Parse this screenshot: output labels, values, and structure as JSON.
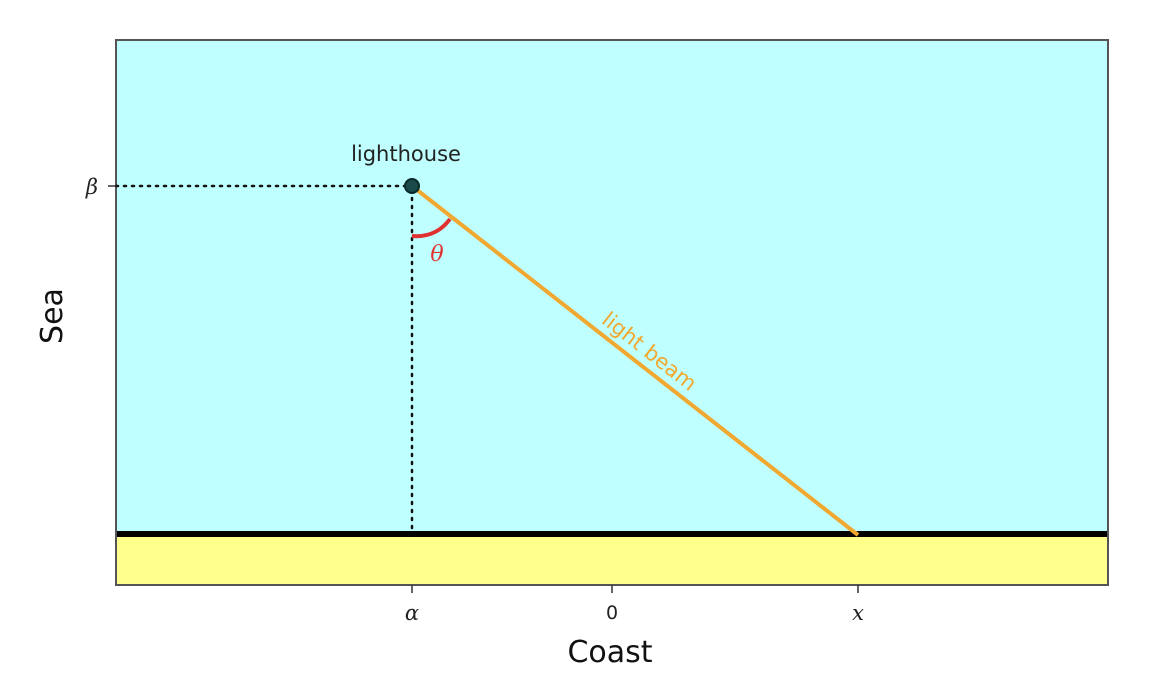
{
  "axes": {
    "xlabel": "Coast",
    "ylabel": "Sea",
    "xticks": {
      "alpha": "α",
      "zero": "0",
      "x": "x"
    },
    "yticks": {
      "beta": "β"
    }
  },
  "annotations": {
    "lighthouse": "lighthouse",
    "angle": "θ",
    "beam": "light beam"
  },
  "colors": {
    "sea": "#c0ffff",
    "land": "#ffff8c",
    "coastline": "#000000",
    "beam": "#f0a830",
    "angle": "#e03030",
    "lighthouse": "#1a4a4a"
  }
}
